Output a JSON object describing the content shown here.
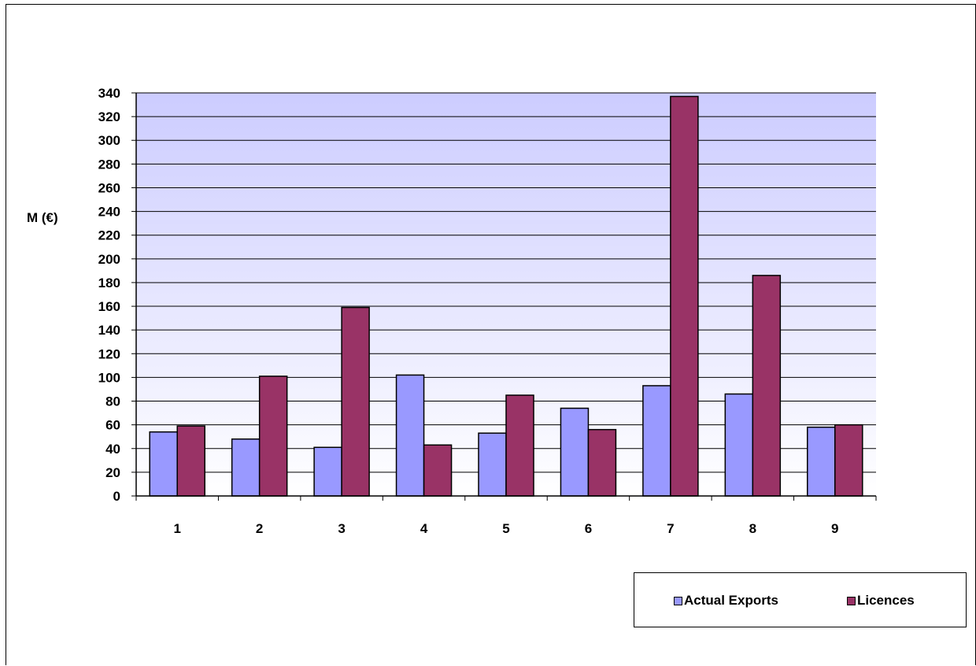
{
  "chart_data": {
    "type": "bar",
    "title": "",
    "xlabel": "",
    "ylabel": "M (€)",
    "categories": [
      "1",
      "2",
      "3",
      "4",
      "5",
      "6",
      "7",
      "8",
      "9"
    ],
    "series": [
      {
        "name": "Actual Exports",
        "color": "#9999ff",
        "values": [
          54,
          48,
          41,
          102,
          53,
          74,
          93,
          86,
          58
        ]
      },
      {
        "name": "Licences",
        "color": "#993366",
        "values": [
          59,
          101,
          159,
          43,
          85,
          56,
          337,
          186,
          60
        ]
      }
    ],
    "ylim": [
      0,
      340
    ],
    "yticks": [
      0,
      20,
      40,
      60,
      80,
      100,
      120,
      140,
      160,
      180,
      200,
      220,
      240,
      260,
      280,
      300,
      320,
      340
    ],
    "grid": true,
    "legend_position": "bottom-right",
    "plot_background": [
      "#ffffff",
      "#ccccff"
    ]
  }
}
